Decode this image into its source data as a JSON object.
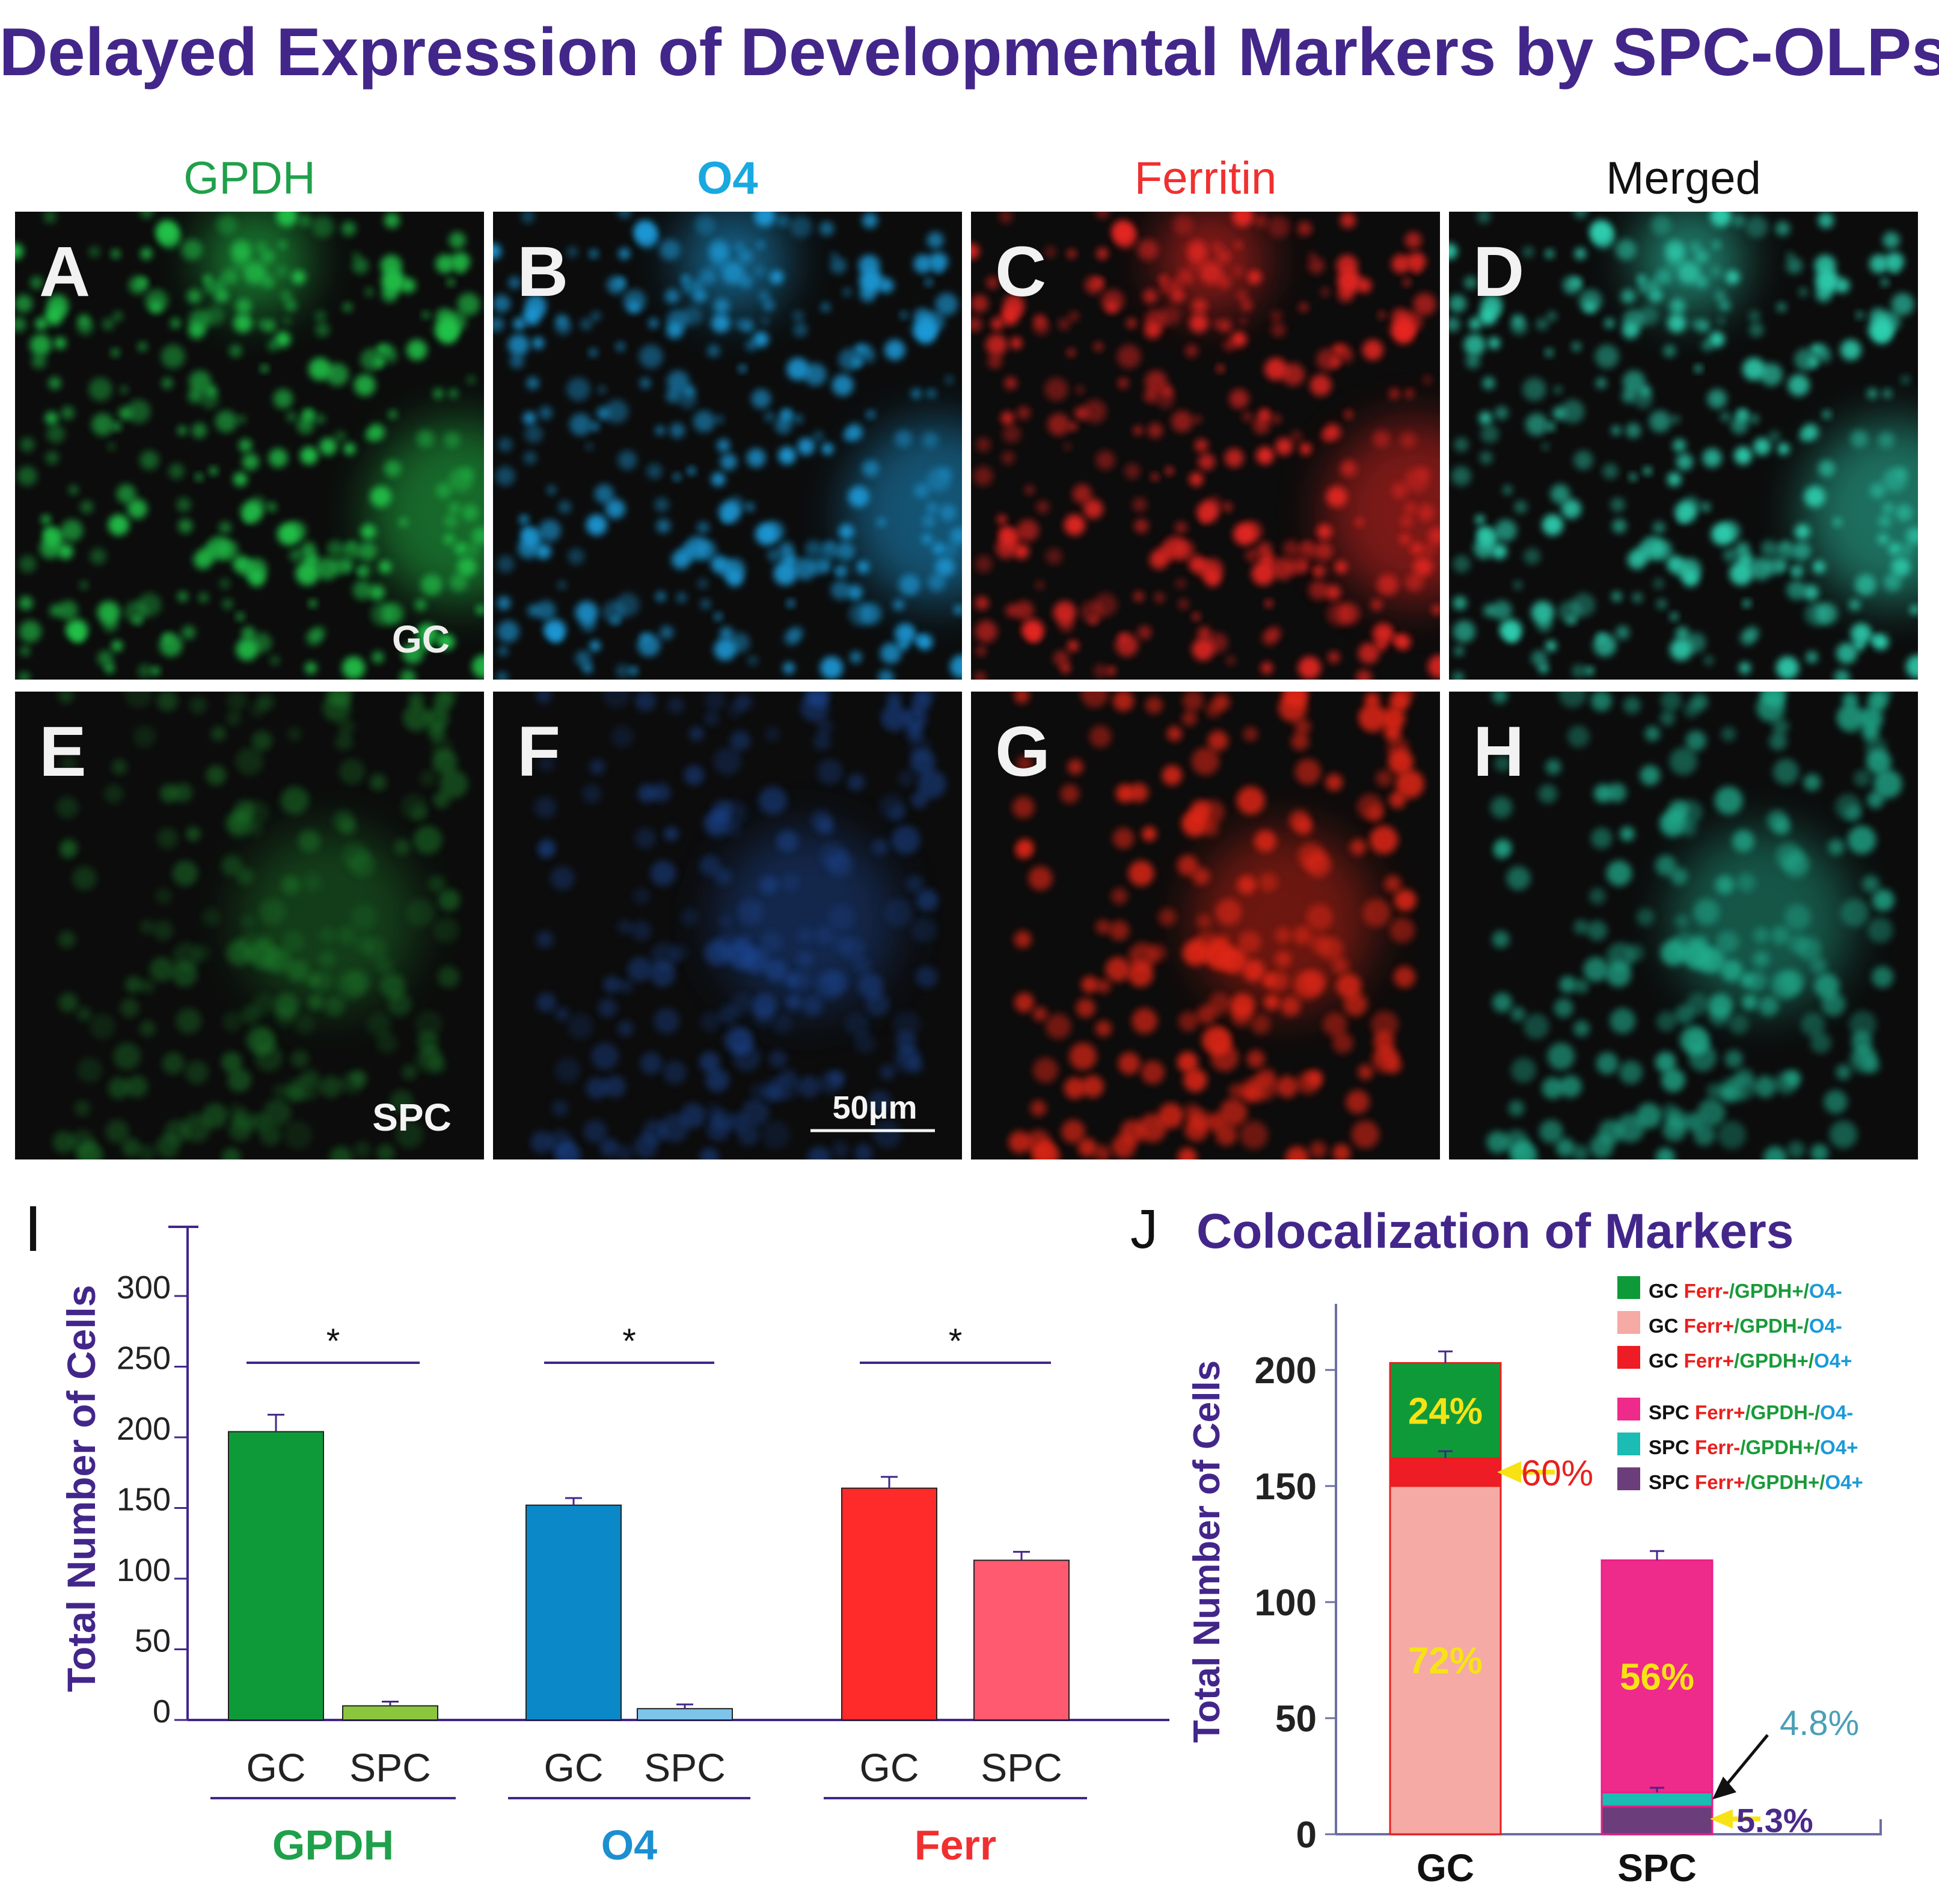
{
  "figure": {
    "title": "Delayed Expression of Developmental Markers by SPC-OLPs"
  },
  "micrographs": {
    "channels": [
      {
        "label": "GPDH",
        "color": "#1fa04a"
      },
      {
        "label": "O4",
        "color": "#19a8e0"
      },
      {
        "label": "Ferritin",
        "color": "#f03030"
      },
      {
        "label": "Merged",
        "color": "#111111"
      }
    ],
    "panel_letters": [
      "A",
      "B",
      "C",
      "D",
      "E",
      "F",
      "G",
      "H"
    ],
    "row_labels": {
      "top": "GC",
      "bottom": "SPC"
    },
    "scale_bar": "50μm",
    "cell_colors": [
      "#22c44a",
      "#1a9ad8",
      "#e82820",
      "#2fd0b0"
    ],
    "dim_cell_colors": [
      "#1e7a2a",
      "#1e4a9a",
      "#e02818",
      "#22b090"
    ]
  },
  "chart_data": [
    {
      "panel": "I",
      "type": "bar",
      "ylabel": "Total Number of Cells",
      "ylim": [
        0,
        300
      ],
      "yticks": [
        0,
        50,
        100,
        150,
        200,
        250,
        300
      ],
      "groups": [
        {
          "name": "GPDH",
          "color": "#1fa04a",
          "bars": [
            {
              "label": "GC",
              "value": 204,
              "err": 12,
              "color": "#0f9a3a"
            },
            {
              "label": "SPC",
              "value": 10,
              "err": 3,
              "color": "#8cc63f"
            }
          ]
        },
        {
          "name": "O4",
          "color": "#1b8fd0",
          "bars": [
            {
              "label": "GC",
              "value": 152,
              "err": 5,
              "color": "#0a88c8"
            },
            {
              "label": "SPC",
              "value": 8,
              "err": 3,
              "color": "#7cc4ea"
            }
          ]
        },
        {
          "name": "Ferr",
          "color": "#f03030",
          "bars": [
            {
              "label": "GC",
              "value": 164,
              "err": 8,
              "color": "#ff2b2b"
            },
            {
              "label": "SPC",
              "value": 113,
              "err": 6,
              "color": "#ff5a70"
            }
          ]
        }
      ],
      "significance": [
        "*",
        "*",
        "*"
      ]
    },
    {
      "panel": "J",
      "type": "bar",
      "stacked": true,
      "title": "Colocalization of Markers",
      "ylabel": "Total Number of Cells",
      "ylim": [
        0,
        220
      ],
      "yticks": [
        0,
        50,
        100,
        150,
        200
      ],
      "categories": [
        "GC",
        "SPC"
      ],
      "stacks": [
        {
          "category": "GC",
          "segments": [
            {
              "name": "GC Ferr+/GPDH-/O4-",
              "from": 0,
              "to": 150,
              "label": "72%",
              "color": "#f5aaa5"
            },
            {
              "name": "GC Ferr+/GPDH+/O4+",
              "from": 150,
              "to": 162,
              "label": "",
              "color": "#ee1c24"
            },
            {
              "name": "GC Ferr-/GPDH+/O4-",
              "from": 162,
              "to": 203,
              "label": "24%",
              "color": "#0f9a3a"
            }
          ]
        },
        {
          "category": "SPC",
          "segments": [
            {
              "name": "SPC Ferr+/GPDH+/O4+",
              "from": 0,
              "to": 12,
              "label": "",
              "color": "#6b3d7a"
            },
            {
              "name": "SPC Ferr-/GPDH+/O4+",
              "from": 12,
              "to": 18,
              "label": "",
              "color": "#1bbcb3"
            },
            {
              "name": "SPC Ferr+/GPDH-/O4-",
              "from": 18,
              "to": 118,
              "label": "56%",
              "color": "#ee2a8a"
            }
          ]
        }
      ],
      "errors": [
        {
          "category": "GC",
          "top": 203,
          "err": 5
        },
        {
          "category": "GC",
          "top": 162,
          "err": 3
        },
        {
          "category": "SPC",
          "top": 118,
          "err": 4
        },
        {
          "category": "SPC",
          "top": 18,
          "err": 2
        }
      ],
      "annotations": [
        {
          "text": "60%",
          "color": "#e8201e",
          "arrow": "#f7e315",
          "at": 156
        },
        {
          "text": "4.8%",
          "color": "#4aa0b6",
          "arrow": "#111111",
          "at": 15
        },
        {
          "text": "5.3%",
          "color": "#4a2a8a",
          "arrow": "#f7e315",
          "at": 4
        }
      ],
      "legend": [
        {
          "prefix": "GC",
          "parts": [
            {
              "t": "Ferr-",
              "c": "#e8201e"
            },
            {
              "t": "/GPDH+/",
              "c": "#1a9a3a"
            },
            {
              "t": "O4-",
              "c": "#1b9ad8"
            }
          ],
          "color": "#0f9a3a"
        },
        {
          "prefix": "GC",
          "parts": [
            {
              "t": "Ferr+",
              "c": "#e8201e"
            },
            {
              "t": "/GPDH-/",
              "c": "#1a9a3a"
            },
            {
              "t": "O4-",
              "c": "#1b9ad8"
            }
          ],
          "color": "#f5aaa5"
        },
        {
          "prefix": "GC",
          "parts": [
            {
              "t": "Ferr+",
              "c": "#e8201e"
            },
            {
              "t": "/GPDH+/",
              "c": "#1a9a3a"
            },
            {
              "t": "O4+",
              "c": "#1b9ad8"
            }
          ],
          "color": "#ee1c24"
        },
        {
          "prefix": "SPC",
          "parts": [
            {
              "t": "Ferr+",
              "c": "#e8201e"
            },
            {
              "t": "/GPDH-/",
              "c": "#1a9a3a"
            },
            {
              "t": "O4-",
              "c": "#1b9ad8"
            }
          ],
          "color": "#ee2a8a"
        },
        {
          "prefix": "SPC",
          "parts": [
            {
              "t": "Ferr-",
              "c": "#e8201e"
            },
            {
              "t": "/GPDH+/",
              "c": "#1a9a3a"
            },
            {
              "t": "O4+",
              "c": "#1b9ad8"
            }
          ],
          "color": "#1bbcb3"
        },
        {
          "prefix": "SPC",
          "parts": [
            {
              "t": "Ferr+",
              "c": "#e8201e"
            },
            {
              "t": "/GPDH+/",
              "c": "#1a9a3a"
            },
            {
              "t": "O4+",
              "c": "#1b9ad8"
            }
          ],
          "color": "#6b3d7a"
        }
      ]
    }
  ]
}
